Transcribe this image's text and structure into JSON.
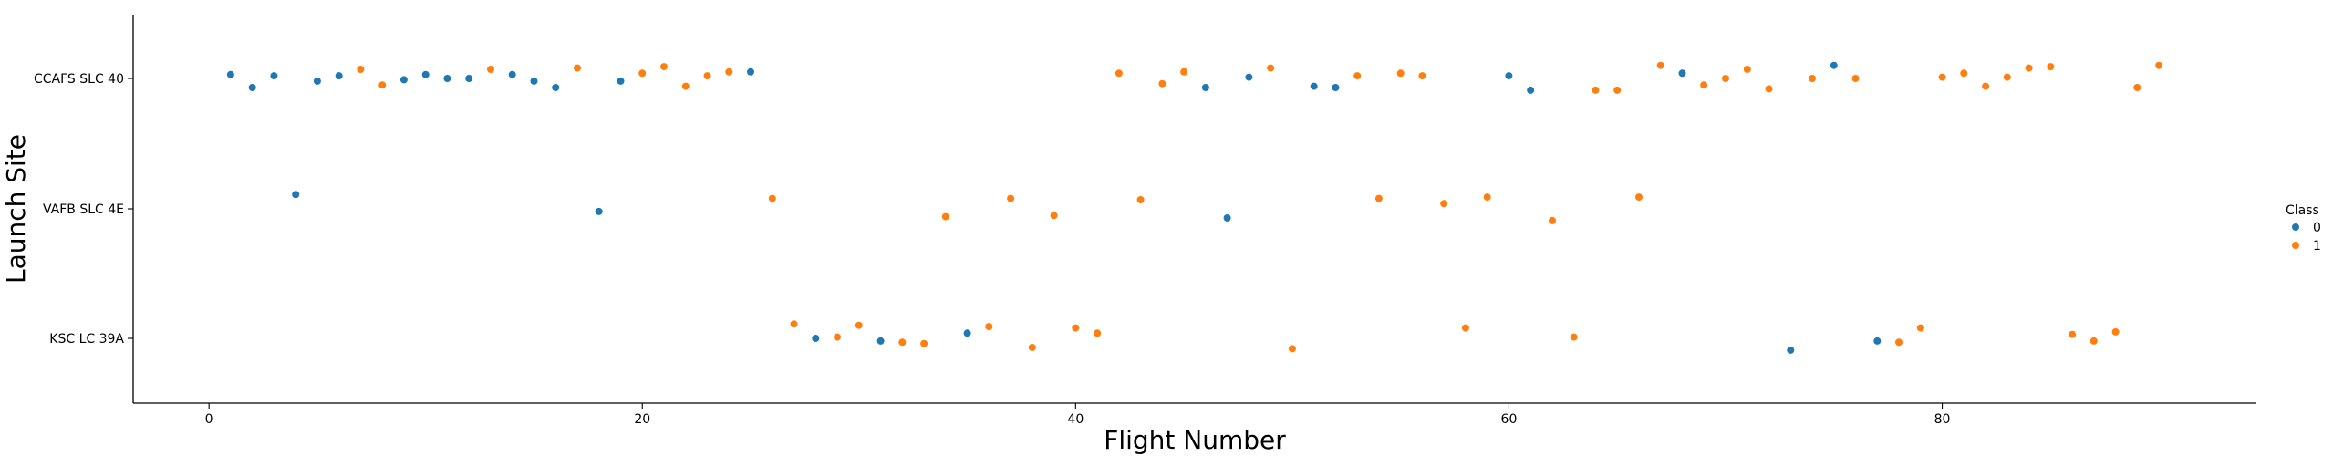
{
  "chart_data": {
    "type": "scatter",
    "xlabel": "Flight Number",
    "ylabel": "Launch Site",
    "xlim": [
      -3.5,
      94.5
    ],
    "x_ticks": [
      0,
      20,
      40,
      60,
      80
    ],
    "categories": [
      "CCAFS SLC 40",
      "VAFB SLC 4E",
      "KSC LC 39A"
    ],
    "grid": false,
    "legend": {
      "title": "Class",
      "placement": "right",
      "entries": [
        {
          "label": "0",
          "color": "#1f77b4"
        },
        {
          "label": "1",
          "color": "#ff7f0e"
        }
      ]
    },
    "series": [
      {
        "name": "0",
        "color": "#1f77b4",
        "points": [
          {
            "x": 1,
            "site": "CCAFS SLC 40",
            "jitter": 0.03
          },
          {
            "x": 2,
            "site": "CCAFS SLC 40",
            "jitter": -0.07
          },
          {
            "x": 3,
            "site": "CCAFS SLC 40",
            "jitter": 0.02
          },
          {
            "x": 4,
            "site": "VAFB SLC 4E",
            "jitter": 0.11
          },
          {
            "x": 5,
            "site": "CCAFS SLC 40",
            "jitter": -0.02
          },
          {
            "x": 6,
            "site": "CCAFS SLC 40",
            "jitter": 0.02
          },
          {
            "x": 9,
            "site": "CCAFS SLC 40",
            "jitter": -0.01
          },
          {
            "x": 10,
            "site": "CCAFS SLC 40",
            "jitter": 0.03
          },
          {
            "x": 11,
            "site": "CCAFS SLC 40",
            "jitter": 0.0
          },
          {
            "x": 12,
            "site": "CCAFS SLC 40",
            "jitter": 0.0
          },
          {
            "x": 14,
            "site": "CCAFS SLC 40",
            "jitter": 0.03
          },
          {
            "x": 15,
            "site": "CCAFS SLC 40",
            "jitter": -0.02
          },
          {
            "x": 16,
            "site": "CCAFS SLC 40",
            "jitter": -0.07
          },
          {
            "x": 18,
            "site": "VAFB SLC 4E",
            "jitter": -0.02
          },
          {
            "x": 19,
            "site": "CCAFS SLC 40",
            "jitter": -0.02
          },
          {
            "x": 25,
            "site": "CCAFS SLC 40",
            "jitter": 0.05
          },
          {
            "x": 28,
            "site": "KSC LC 39A",
            "jitter": 0.0
          },
          {
            "x": 31,
            "site": "KSC LC 39A",
            "jitter": -0.02
          },
          {
            "x": 35,
            "site": "KSC LC 39A",
            "jitter": 0.04
          },
          {
            "x": 46,
            "site": "CCAFS SLC 40",
            "jitter": -0.07
          },
          {
            "x": 47,
            "site": "VAFB SLC 4E",
            "jitter": -0.07
          },
          {
            "x": 48,
            "site": "CCAFS SLC 40",
            "jitter": 0.01
          },
          {
            "x": 51,
            "site": "CCAFS SLC 40",
            "jitter": -0.06
          },
          {
            "x": 52,
            "site": "CCAFS SLC 40",
            "jitter": -0.07
          },
          {
            "x": 60,
            "site": "CCAFS SLC 40",
            "jitter": 0.02
          },
          {
            "x": 61,
            "site": "CCAFS SLC 40",
            "jitter": -0.09
          },
          {
            "x": 68,
            "site": "CCAFS SLC 40",
            "jitter": 0.04
          },
          {
            "x": 73,
            "site": "KSC LC 39A",
            "jitter": -0.09
          },
          {
            "x": 75,
            "site": "CCAFS SLC 40",
            "jitter": 0.1
          },
          {
            "x": 77,
            "site": "KSC LC 39A",
            "jitter": -0.02
          }
        ]
      },
      {
        "name": "1",
        "color": "#ff7f0e",
        "points": [
          {
            "x": 7,
            "site": "CCAFS SLC 40",
            "jitter": 0.07
          },
          {
            "x": 8,
            "site": "CCAFS SLC 40",
            "jitter": -0.05
          },
          {
            "x": 13,
            "site": "CCAFS SLC 40",
            "jitter": 0.07
          },
          {
            "x": 17,
            "site": "CCAFS SLC 40",
            "jitter": 0.08
          },
          {
            "x": 20,
            "site": "CCAFS SLC 40",
            "jitter": 0.04
          },
          {
            "x": 21,
            "site": "CCAFS SLC 40",
            "jitter": 0.09
          },
          {
            "x": 22,
            "site": "CCAFS SLC 40",
            "jitter": -0.06
          },
          {
            "x": 23,
            "site": "CCAFS SLC 40",
            "jitter": 0.02
          },
          {
            "x": 24,
            "site": "CCAFS SLC 40",
            "jitter": 0.05
          },
          {
            "x": 26,
            "site": "VAFB SLC 4E",
            "jitter": 0.08
          },
          {
            "x": 27,
            "site": "KSC LC 39A",
            "jitter": 0.11
          },
          {
            "x": 29,
            "site": "KSC LC 39A",
            "jitter": 0.01
          },
          {
            "x": 30,
            "site": "KSC LC 39A",
            "jitter": 0.1
          },
          {
            "x": 32,
            "site": "KSC LC 39A",
            "jitter": -0.03
          },
          {
            "x": 33,
            "site": "KSC LC 39A",
            "jitter": -0.04
          },
          {
            "x": 34,
            "site": "VAFB SLC 4E",
            "jitter": -0.06
          },
          {
            "x": 36,
            "site": "KSC LC 39A",
            "jitter": 0.09
          },
          {
            "x": 37,
            "site": "VAFB SLC 4E",
            "jitter": 0.08
          },
          {
            "x": 38,
            "site": "KSC LC 39A",
            "jitter": -0.07
          },
          {
            "x": 39,
            "site": "VAFB SLC 4E",
            "jitter": -0.05
          },
          {
            "x": 40,
            "site": "KSC LC 39A",
            "jitter": 0.08
          },
          {
            "x": 41,
            "site": "KSC LC 39A",
            "jitter": 0.04
          },
          {
            "x": 42,
            "site": "CCAFS SLC 40",
            "jitter": 0.04
          },
          {
            "x": 43,
            "site": "VAFB SLC 4E",
            "jitter": 0.07
          },
          {
            "x": 44,
            "site": "CCAFS SLC 40",
            "jitter": -0.04
          },
          {
            "x": 45,
            "site": "CCAFS SLC 40",
            "jitter": 0.05
          },
          {
            "x": 49,
            "site": "CCAFS SLC 40",
            "jitter": 0.08
          },
          {
            "x": 50,
            "site": "KSC LC 39A",
            "jitter": -0.08
          },
          {
            "x": 53,
            "site": "CCAFS SLC 40",
            "jitter": 0.02
          },
          {
            "x": 54,
            "site": "VAFB SLC 4E",
            "jitter": 0.08
          },
          {
            "x": 55,
            "site": "CCAFS SLC 40",
            "jitter": 0.04
          },
          {
            "x": 56,
            "site": "CCAFS SLC 40",
            "jitter": 0.02
          },
          {
            "x": 57,
            "site": "VAFB SLC 4E",
            "jitter": 0.04
          },
          {
            "x": 58,
            "site": "KSC LC 39A",
            "jitter": 0.08
          },
          {
            "x": 59,
            "site": "VAFB SLC 4E",
            "jitter": 0.09
          },
          {
            "x": 62,
            "site": "VAFB SLC 4E",
            "jitter": -0.09
          },
          {
            "x": 63,
            "site": "KSC LC 39A",
            "jitter": 0.01
          },
          {
            "x": 64,
            "site": "CCAFS SLC 40",
            "jitter": -0.09
          },
          {
            "x": 65,
            "site": "CCAFS SLC 40",
            "jitter": -0.09
          },
          {
            "x": 66,
            "site": "VAFB SLC 4E",
            "jitter": 0.09
          },
          {
            "x": 67,
            "site": "CCAFS SLC 40",
            "jitter": 0.1
          },
          {
            "x": 69,
            "site": "CCAFS SLC 40",
            "jitter": -0.05
          },
          {
            "x": 70,
            "site": "CCAFS SLC 40",
            "jitter": 0.0
          },
          {
            "x": 71,
            "site": "CCAFS SLC 40",
            "jitter": 0.07
          },
          {
            "x": 72,
            "site": "CCAFS SLC 40",
            "jitter": -0.08
          },
          {
            "x": 74,
            "site": "CCAFS SLC 40",
            "jitter": 0.0
          },
          {
            "x": 76,
            "site": "CCAFS SLC 40",
            "jitter": 0.0
          },
          {
            "x": 78,
            "site": "KSC LC 39A",
            "jitter": -0.03
          },
          {
            "x": 79,
            "site": "KSC LC 39A",
            "jitter": 0.08
          },
          {
            "x": 80,
            "site": "CCAFS SLC 40",
            "jitter": 0.01
          },
          {
            "x": 81,
            "site": "CCAFS SLC 40",
            "jitter": 0.04
          },
          {
            "x": 82,
            "site": "CCAFS SLC 40",
            "jitter": -0.06
          },
          {
            "x": 83,
            "site": "CCAFS SLC 40",
            "jitter": 0.01
          },
          {
            "x": 84,
            "site": "CCAFS SLC 40",
            "jitter": 0.08
          },
          {
            "x": 85,
            "site": "CCAFS SLC 40",
            "jitter": 0.09
          },
          {
            "x": 86,
            "site": "KSC LC 39A",
            "jitter": 0.03
          },
          {
            "x": 87,
            "site": "KSC LC 39A",
            "jitter": -0.02
          },
          {
            "x": 88,
            "site": "KSC LC 39A",
            "jitter": 0.05
          },
          {
            "x": 89,
            "site": "CCAFS SLC 40",
            "jitter": -0.07
          },
          {
            "x": 90,
            "site": "CCAFS SLC 40",
            "jitter": 0.1
          }
        ]
      }
    ]
  }
}
